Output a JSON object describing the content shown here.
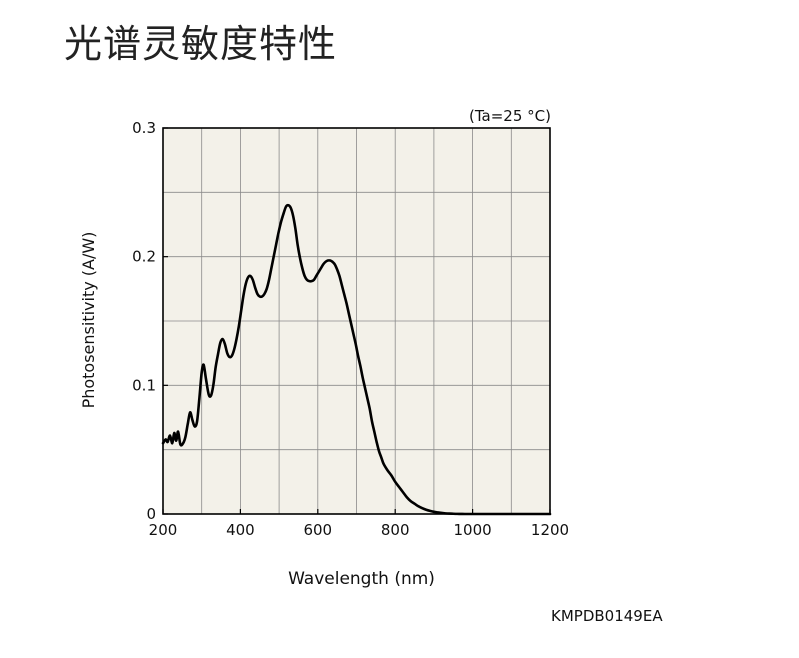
{
  "page": {
    "title": "光谱灵敏度特性",
    "figure_code": "KMPDB0149EA"
  },
  "chart_data": {
    "type": "line",
    "condition_label": "(Ta=25 °C)",
    "xlabel": "Wavelength (nm)",
    "ylabel": "Photosensitivity (A/W)",
    "xlim": [
      200,
      1200
    ],
    "ylim": [
      0,
      0.3
    ],
    "x_ticks": [
      200,
      400,
      600,
      800,
      1000,
      1200
    ],
    "x_tick_labels": [
      "200",
      "400",
      "600",
      "800",
      "1000",
      "1200"
    ],
    "x_minor_step": 100,
    "y_ticks": [
      0,
      0.1,
      0.2,
      0.3
    ],
    "y_tick_labels": [
      "0",
      "0.1",
      "0.2",
      "0.3"
    ],
    "y_minor_step": 0.05,
    "grid": true,
    "colors": {
      "plot_background": "#f3f1e9",
      "grid": "#8a8a8a",
      "line": "#000000"
    },
    "series": [
      {
        "x": [
          200,
          207,
          212,
          218,
          224,
          229,
          234,
          239,
          245,
          252,
          258,
          264,
          270,
          276,
          282,
          288,
          294,
          300,
          305,
          311,
          318,
          324,
          330,
          336,
          342,
          348,
          354,
          360,
          366,
          372,
          378,
          384,
          390,
          396,
          402,
          408,
          414,
          420,
          426,
          432,
          438,
          444,
          450,
          456,
          462,
          468,
          474,
          480,
          486,
          492,
          498,
          505,
          512,
          518,
          524,
          530,
          536,
          542,
          548,
          554,
          560,
          566,
          572,
          578,
          584,
          590,
          596,
          602,
          608,
          614,
          620,
          626,
          632,
          638,
          644,
          650,
          656,
          662,
          668,
          674,
          680,
          686,
          692,
          698,
          704,
          710,
          716,
          722,
          728,
          734,
          740,
          746,
          752,
          758,
          764,
          770,
          780,
          790,
          800,
          810,
          820,
          830,
          840,
          850,
          860,
          870,
          880,
          890,
          900,
          910,
          920,
          930,
          940,
          950,
          960,
          970,
          980,
          990,
          1000,
          1010,
          1020,
          1030,
          1040,
          1050,
          1060,
          1070,
          1080,
          1090,
          1100,
          1110,
          1120,
          1130,
          1140,
          1150,
          1160,
          1170,
          1180,
          1190,
          1200
        ],
        "values": [
          0.055,
          0.058,
          0.056,
          0.061,
          0.055,
          0.063,
          0.057,
          0.064,
          0.054,
          0.055,
          0.06,
          0.07,
          0.079,
          0.073,
          0.068,
          0.072,
          0.09,
          0.11,
          0.116,
          0.105,
          0.093,
          0.092,
          0.1,
          0.114,
          0.124,
          0.133,
          0.136,
          0.132,
          0.125,
          0.122,
          0.123,
          0.128,
          0.136,
          0.146,
          0.158,
          0.17,
          0.179,
          0.184,
          0.185,
          0.182,
          0.176,
          0.171,
          0.169,
          0.169,
          0.171,
          0.175,
          0.182,
          0.191,
          0.2,
          0.209,
          0.218,
          0.227,
          0.234,
          0.239,
          0.24,
          0.238,
          0.232,
          0.222,
          0.209,
          0.199,
          0.191,
          0.185,
          0.182,
          0.181,
          0.181,
          0.182,
          0.185,
          0.188,
          0.191,
          0.194,
          0.196,
          0.197,
          0.197,
          0.196,
          0.194,
          0.19,
          0.185,
          0.178,
          0.171,
          0.164,
          0.156,
          0.148,
          0.14,
          0.132,
          0.123,
          0.115,
          0.106,
          0.098,
          0.09,
          0.082,
          0.072,
          0.064,
          0.056,
          0.049,
          0.044,
          0.039,
          0.034,
          0.03,
          0.025,
          0.021,
          0.017,
          0.013,
          0.01,
          0.008,
          0.006,
          0.0045,
          0.0033,
          0.0024,
          0.0017,
          0.0012,
          0.0008,
          0.0005,
          0.0003,
          0.0002,
          0.0001,
          5e-05,
          0.0,
          0.0,
          0.0,
          0.0,
          0.0,
          0.0,
          0.0,
          0.0,
          0.0,
          0.0,
          0.0,
          0.0,
          0.0,
          0.0,
          0.0,
          0.0,
          0.0,
          0.0,
          0.0,
          0.0,
          0.0,
          0.0,
          0.0
        ]
      }
    ]
  }
}
